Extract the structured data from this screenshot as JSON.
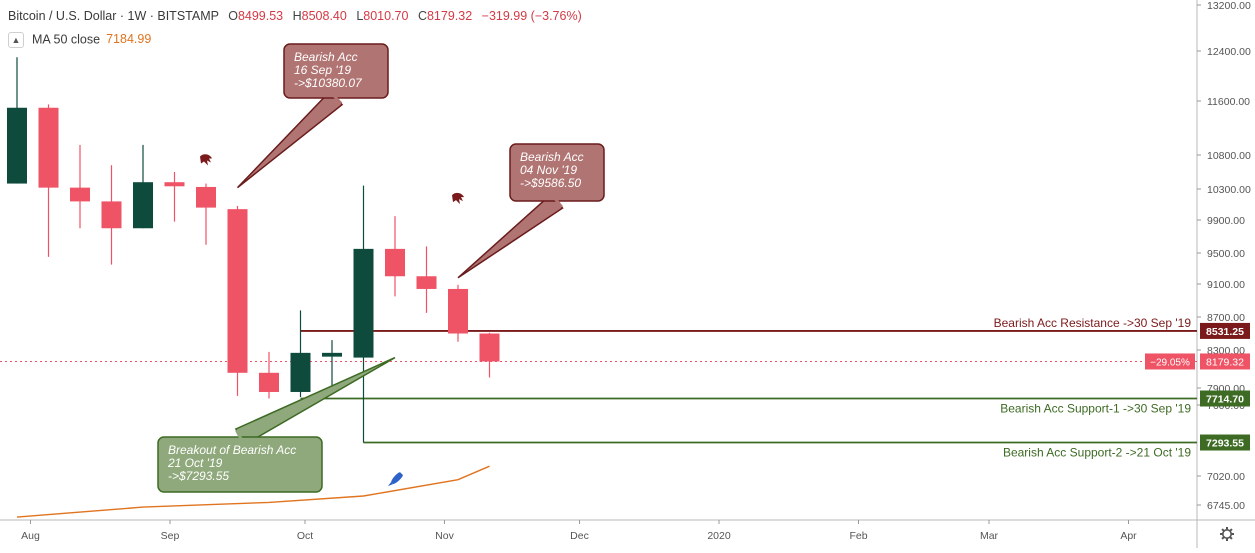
{
  "header": {
    "symbol": "Bitcoin / U.S. Dollar",
    "interval": "1W",
    "exchange": "BITSTAMP",
    "open_label": "O",
    "open": "8499.53",
    "high_label": "H",
    "high": "8508.40",
    "low_label": "L",
    "low": "8010.70",
    "close_label": "C",
    "close": "8179.32",
    "change": "−319.99 (−3.76%)",
    "collapse_icon": "chevron-up-icon",
    "indicator_name": "MA 50 close",
    "indicator_value": "7184.99"
  },
  "colors": {
    "bull": "#0f4b3c",
    "bear": "#ef5366",
    "ma": "#e0741f",
    "resistance": "#7a1a1a",
    "support": "#3d6b24",
    "grid": "#ffffff"
  },
  "chart_data": {
    "type": "candlestick",
    "y_ticks": [
      "13200.00",
      "12400.00",
      "11600.00",
      "10800.00",
      "10300.00",
      "9900.00",
      "9500.00",
      "9100.00",
      "8700.00",
      "8300.00",
      "7900.00",
      "7600.00",
      "7020.00",
      "6745.00"
    ],
    "x_ticks": [
      {
        "label": "Aug",
        "date": "2019-08-01"
      },
      {
        "label": "Sep",
        "date": "2019-09-01"
      },
      {
        "label": "Oct",
        "date": "2019-10-01"
      },
      {
        "label": "Nov",
        "date": "2019-11-01"
      },
      {
        "label": "Dec",
        "date": "2019-12-01"
      },
      {
        "label": "2020",
        "date": "2020-01-01"
      },
      {
        "label": "Feb",
        "date": "2020-02-01"
      },
      {
        "label": "Mar",
        "date": "2020-03-01"
      },
      {
        "label": "Apr",
        "date": "2020-04-01"
      }
    ],
    "candles": [
      {
        "date": "2019-07-29",
        "o": 10380,
        "h": 12300,
        "l": 10380,
        "c": 11500
      },
      {
        "date": "2019-08-05",
        "o": 11500,
        "h": 11550,
        "l": 9450,
        "c": 10320
      },
      {
        "date": "2019-08-12",
        "o": 10320,
        "h": 10950,
        "l": 9800,
        "c": 10140
      },
      {
        "date": "2019-08-19",
        "o": 10140,
        "h": 10650,
        "l": 9350,
        "c": 9800
      },
      {
        "date": "2019-08-26",
        "o": 9800,
        "h": 10950,
        "l": 9800,
        "c": 10400
      },
      {
        "date": "2019-09-02",
        "o": 10400,
        "h": 10550,
        "l": 9880,
        "c": 10340
      },
      {
        "date": "2019-09-09",
        "o": 10330,
        "h": 10380,
        "l": 9600,
        "c": 10060
      },
      {
        "date": "2019-09-16",
        "o": 10040,
        "h": 10080,
        "l": 7760,
        "c": 8060
      },
      {
        "date": "2019-09-23",
        "o": 8060,
        "h": 8280,
        "l": 7715,
        "c": 7830
      },
      {
        "date": "2019-09-30",
        "o": 7830,
        "h": 8780,
        "l": 7740,
        "c": 8270
      },
      {
        "date": "2019-10-07",
        "o": 8230,
        "h": 8420,
        "l": 7800,
        "c": 8270
      },
      {
        "date": "2019-10-14",
        "o": 8220,
        "h": 10350,
        "l": 7293,
        "c": 9550
      },
      {
        "date": "2019-10-21",
        "o": 9550,
        "h": 9950,
        "l": 8950,
        "c": 9200
      },
      {
        "date": "2019-10-28",
        "o": 9200,
        "h": 9580,
        "l": 8750,
        "c": 9040
      },
      {
        "date": "2019-11-04",
        "o": 9040,
        "h": 9090,
        "l": 8400,
        "c": 8500
      },
      {
        "date": "2019-11-11",
        "o": 8499.53,
        "h": 8508.4,
        "l": 8010.7,
        "c": 8179.32
      }
    ],
    "ma50": [
      {
        "date": "2019-07-29",
        "v": 6630
      },
      {
        "date": "2019-08-26",
        "v": 6725
      },
      {
        "date": "2019-09-23",
        "v": 6770
      },
      {
        "date": "2019-10-14",
        "v": 6830
      },
      {
        "date": "2019-11-04",
        "v": 6985
      },
      {
        "date": "2019-11-11",
        "v": 7100
      }
    ],
    "levels": [
      {
        "name": "resistance",
        "price": 8531.25,
        "price_label": "8531.25",
        "text": "Bearish Acc Resistance ->30 Sep '19",
        "start": "2019-09-30",
        "color": "#7a1a1a"
      },
      {
        "name": "support-1",
        "price": 7714.7,
        "price_label": "7714.70",
        "text": "Bearish Acc Support-1 ->30 Sep '19",
        "start": "2019-09-30",
        "color": "#3d6b24"
      },
      {
        "name": "support-2",
        "price": 7293.55,
        "price_label": "7293.55",
        "text": "Bearish Acc Support-2 ->21 Oct '19",
        "start": "2019-10-14",
        "color": "#3d6b24"
      }
    ],
    "last_price": {
      "price": 8179.32,
      "price_label": "8179.32",
      "pct_label": "−29.05%",
      "color": "#ef5366"
    },
    "callouts": [
      {
        "name": "callout-bearish-acc-sep",
        "lines": [
          "Bearish Acc",
          "16 Sep '19",
          "->$10380.07"
        ],
        "target_date": "2019-09-16",
        "target_price": 10320,
        "bg": "#b07472",
        "border": "#6a1c1c"
      },
      {
        "name": "callout-bearish-acc-nov",
        "lines": [
          "Bearish Acc",
          "04 Nov '19",
          "->$9586.50"
        ],
        "target_date": "2019-11-04",
        "target_price": 9180,
        "bg": "#b07472",
        "border": "#6a1c1c"
      },
      {
        "name": "callout-breakout",
        "lines": [
          "Breakout of Bearish Acc",
          "21 Oct '19",
          "->$7293.55"
        ],
        "target_date": "2019-10-21",
        "target_price": 8220,
        "bg": "#8fa97c",
        "border": "#3d6b24"
      }
    ],
    "markers": [
      {
        "name": "bear-signal-sep",
        "icon": "bear-claw-icon",
        "date": "2019-09-09",
        "price": 10720,
        "color": "#7a1a1a"
      },
      {
        "name": "bear-signal-nov",
        "icon": "bear-claw-icon",
        "date": "2019-11-04",
        "price": 10170,
        "color": "#7a1a1a"
      },
      {
        "name": "bull-signal-oct",
        "icon": "rocket-icon",
        "date": "2019-10-21",
        "price": 6990,
        "color": "#2e62c9"
      }
    ],
    "settings_icon": "gear-icon"
  }
}
